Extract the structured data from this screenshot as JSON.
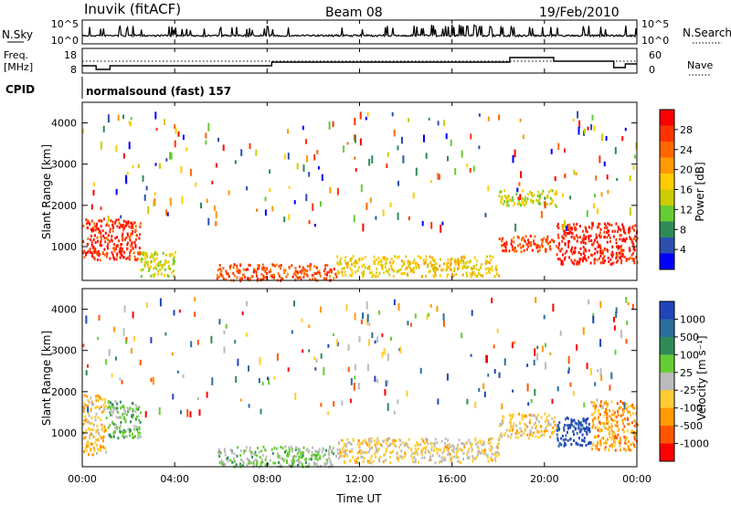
{
  "header": {
    "station": "Inuvik (fitACF)",
    "beam": "Beam 08",
    "date": "19/Feb/2010"
  },
  "noise_panel": {
    "left_label": "N.Sky",
    "right_label": "N.Search",
    "y_tick_top": "10^5",
    "y_tick_bottom": "10^0"
  },
  "freq_panel": {
    "left_label_1": "Freq.",
    "left_label_2": "[MHz]",
    "right_label": "Nave",
    "left_ticks": [
      "18",
      "8"
    ],
    "right_ticks": [
      "60",
      "0"
    ]
  },
  "cpid": {
    "label": "CPID",
    "value": "normalsound (fast) 157"
  },
  "x_axis": {
    "label": "Time UT",
    "ticks": [
      "00:00",
      "04:00",
      "08:00",
      "12:00",
      "16:00",
      "20:00",
      "00:00"
    ]
  },
  "power_panel": {
    "ylabel": "Slant Range [km]",
    "yticks": [
      "1000",
      "2000",
      "3000",
      "4000"
    ],
    "colorbar_label": "Power [dB]",
    "colorbar_ticks": [
      "4",
      "8",
      "12",
      "16",
      "20",
      "24",
      "28"
    ],
    "colors": [
      "#0000ff",
      "#2c4fb0",
      "#2e8b57",
      "#66cc33",
      "#cccc00",
      "#ffcc00",
      "#ff9900",
      "#ff6600",
      "#ff3300",
      "#ff0000"
    ]
  },
  "velocity_panel": {
    "ylabel": "Slant Range [km]",
    "yticks": [
      "1000",
      "2000",
      "3000",
      "4000"
    ],
    "colorbar_label": "Velocity [m s⁻¹]",
    "colorbar_ticks": [
      "1000",
      "500",
      "100",
      "25",
      "-25",
      "-100",
      "-500",
      "-1000"
    ],
    "colors": [
      "#2244bb",
      "#2a6e9e",
      "#2e8b57",
      "#66cc33",
      "#bbbbbb",
      "#ffcc33",
      "#ff9900",
      "#ff5500",
      "#ff0000"
    ]
  },
  "chart_data": [
    {
      "type": "heatmap",
      "title": "Power",
      "xlabel": "Time UT",
      "ylabel": "Slant Range [km]",
      "xlim": [
        "00:00",
        "24:00"
      ],
      "ylim": [
        180,
        4500
      ],
      "zlabel": "Power [dB]",
      "zlim": [
        0,
        30
      ],
      "regions": [
        {
          "t": [
            0.0,
            2.5
          ],
          "r": [
            700,
            1700
          ],
          "v": 26
        },
        {
          "t": [
            2.5,
            4.0
          ],
          "r": [
            300,
            900
          ],
          "v": 14
        },
        {
          "t": [
            5.8,
            11.0
          ],
          "r": [
            200,
            600
          ],
          "v": 24
        },
        {
          "t": [
            11.0,
            18.0
          ],
          "r": [
            300,
            800
          ],
          "v": 16
        },
        {
          "t": [
            18.0,
            20.5
          ],
          "r": [
            900,
            1300
          ],
          "v": 24
        },
        {
          "t": [
            20.5,
            24.0
          ],
          "r": [
            600,
            1600
          ],
          "v": 27
        },
        {
          "t": [
            18.0,
            20.5
          ],
          "r": [
            2000,
            2400
          ],
          "v": 14
        }
      ]
    },
    {
      "type": "heatmap",
      "title": "Velocity",
      "xlabel": "Time UT",
      "ylabel": "Slant Range [km]",
      "xlim": [
        "00:00",
        "24:00"
      ],
      "ylim": [
        180,
        4500
      ],
      "zlabel": "Velocity [m s-1]",
      "zlim": [
        -1000,
        1000
      ],
      "regions": [
        {
          "t": [
            0.0,
            1.0
          ],
          "r": [
            500,
            2000
          ],
          "v": -300
        },
        {
          "t": [
            1.0,
            2.5
          ],
          "r": [
            900,
            1800
          ],
          "v": 200
        },
        {
          "t": [
            5.8,
            11.0
          ],
          "r": [
            200,
            700
          ],
          "v": 150
        },
        {
          "t": [
            11.0,
            18.0
          ],
          "r": [
            300,
            900
          ],
          "v": -150
        },
        {
          "t": [
            18.0,
            20.5
          ],
          "r": [
            900,
            1500
          ],
          "v": -200
        },
        {
          "t": [
            20.5,
            22.0
          ],
          "r": [
            700,
            1400
          ],
          "v": 900
        },
        {
          "t": [
            22.0,
            24.0
          ],
          "r": [
            600,
            1800
          ],
          "v": -400
        }
      ]
    }
  ]
}
